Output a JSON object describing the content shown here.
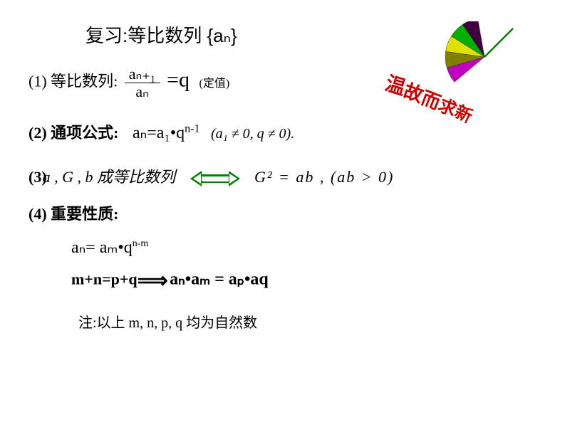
{
  "title": "复习:等比数列 {aₙ}",
  "line1": {
    "label": "(1) 等比数列:",
    "frac_top": "aₙ₊₁",
    "frac_bot": "aₙ",
    "eq": "=q",
    "note": "(定值)"
  },
  "line2": {
    "label": "(2) 通项公式:",
    "formula_a": "aₙ=a₁•q",
    "formula_exp": "n-1",
    "cond": "(a₁ ≠ 0, q ≠ 0)."
  },
  "line3": {
    "label": "(3)",
    "left": "a , G , b  成等比数列",
    "right": "G² = ab , (ab > 0)"
  },
  "line4": {
    "label": "(4) 重要性质:"
  },
  "line5": {
    "lhs": "aₙ= aₘ•q",
    "exp": "n-m"
  },
  "line6": {
    "cond": "m+n=p+q",
    "res": "aₙ•aₘ = aₚ•aq"
  },
  "line7": "注:以上  m, n, p, q 均为自然数",
  "decoration": {
    "text_chars": [
      "温",
      "故",
      "而",
      "求",
      "新"
    ],
    "text_color": "#d00000",
    "fan_colors": [
      "#c000c0",
      "#808000",
      "#e0e000",
      "#00b000",
      "#400040"
    ],
    "stem_color": "#008000"
  },
  "colors": {
    "background": "#ffffff",
    "text": "#000000",
    "arrow": "#008000"
  }
}
